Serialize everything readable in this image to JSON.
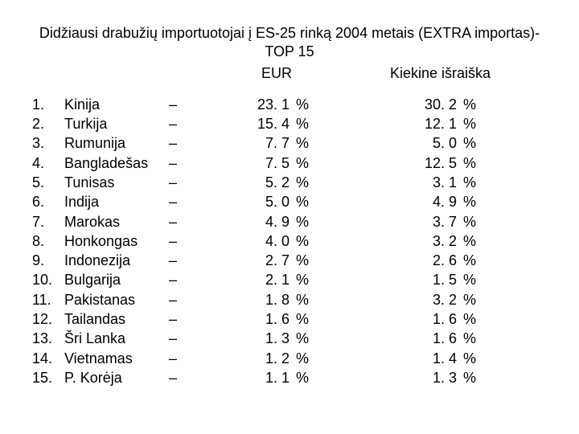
{
  "title_line1": "Didžiausi drabužių  importuotojai į ES-25 rinką 2004 metais (EXTRA importas)-",
  "title_line2": "TOP 15",
  "header_eur": "EUR",
  "header_qty": "Kiekine išraiška",
  "pct_symbol": "%",
  "dash": "–",
  "rows": [
    {
      "rank": "1.",
      "country": "Kinija",
      "eur": "23. 1",
      "qty": "30. 2"
    },
    {
      "rank": "2.",
      "country": "Turkija",
      "eur": "15. 4",
      "qty": "12. 1"
    },
    {
      "rank": "3.",
      "country": "Rumunija",
      "eur": "7. 7",
      "qty": "5. 0"
    },
    {
      "rank": "4.",
      "country": "Bangladešas",
      "eur": "7. 5",
      "qty": "12. 5"
    },
    {
      "rank": "5.",
      "country": "Tunisas",
      "eur": "5. 2",
      "qty": "3. 1"
    },
    {
      "rank": "6.",
      "country": "Indija",
      "eur": "5. 0",
      "qty": "4. 9"
    },
    {
      "rank": "7.",
      "country": "Marokas",
      "eur": "4. 9",
      "qty": "3. 7"
    },
    {
      "rank": "8.",
      "country": "Honkongas",
      "eur": "4. 0",
      "qty": "3. 2"
    },
    {
      "rank": "9.",
      "country": "Indonezija",
      "eur": "2. 7",
      "qty": "2. 6"
    },
    {
      "rank": "10.",
      "country": "Bulgarija",
      "eur": "2. 1",
      "qty": "1. 5"
    },
    {
      "rank": "11.",
      "country": "Pakistanas",
      "eur": "1. 8",
      "qty": "3. 2"
    },
    {
      "rank": "12.",
      "country": "Tailandas",
      "eur": "1. 6",
      "qty": "1. 6"
    },
    {
      "rank": "13.",
      "country": "Šri Lanka",
      "eur": "1. 3",
      "qty": "1. 6"
    },
    {
      "rank": "14.",
      "country": "Vietnamas",
      "eur": "1. 2 ",
      "qty": "1. 4"
    },
    {
      "rank": "15.",
      "country": "P. Korėja",
      "eur": "1. 1",
      "qty": "1. 3"
    }
  ]
}
